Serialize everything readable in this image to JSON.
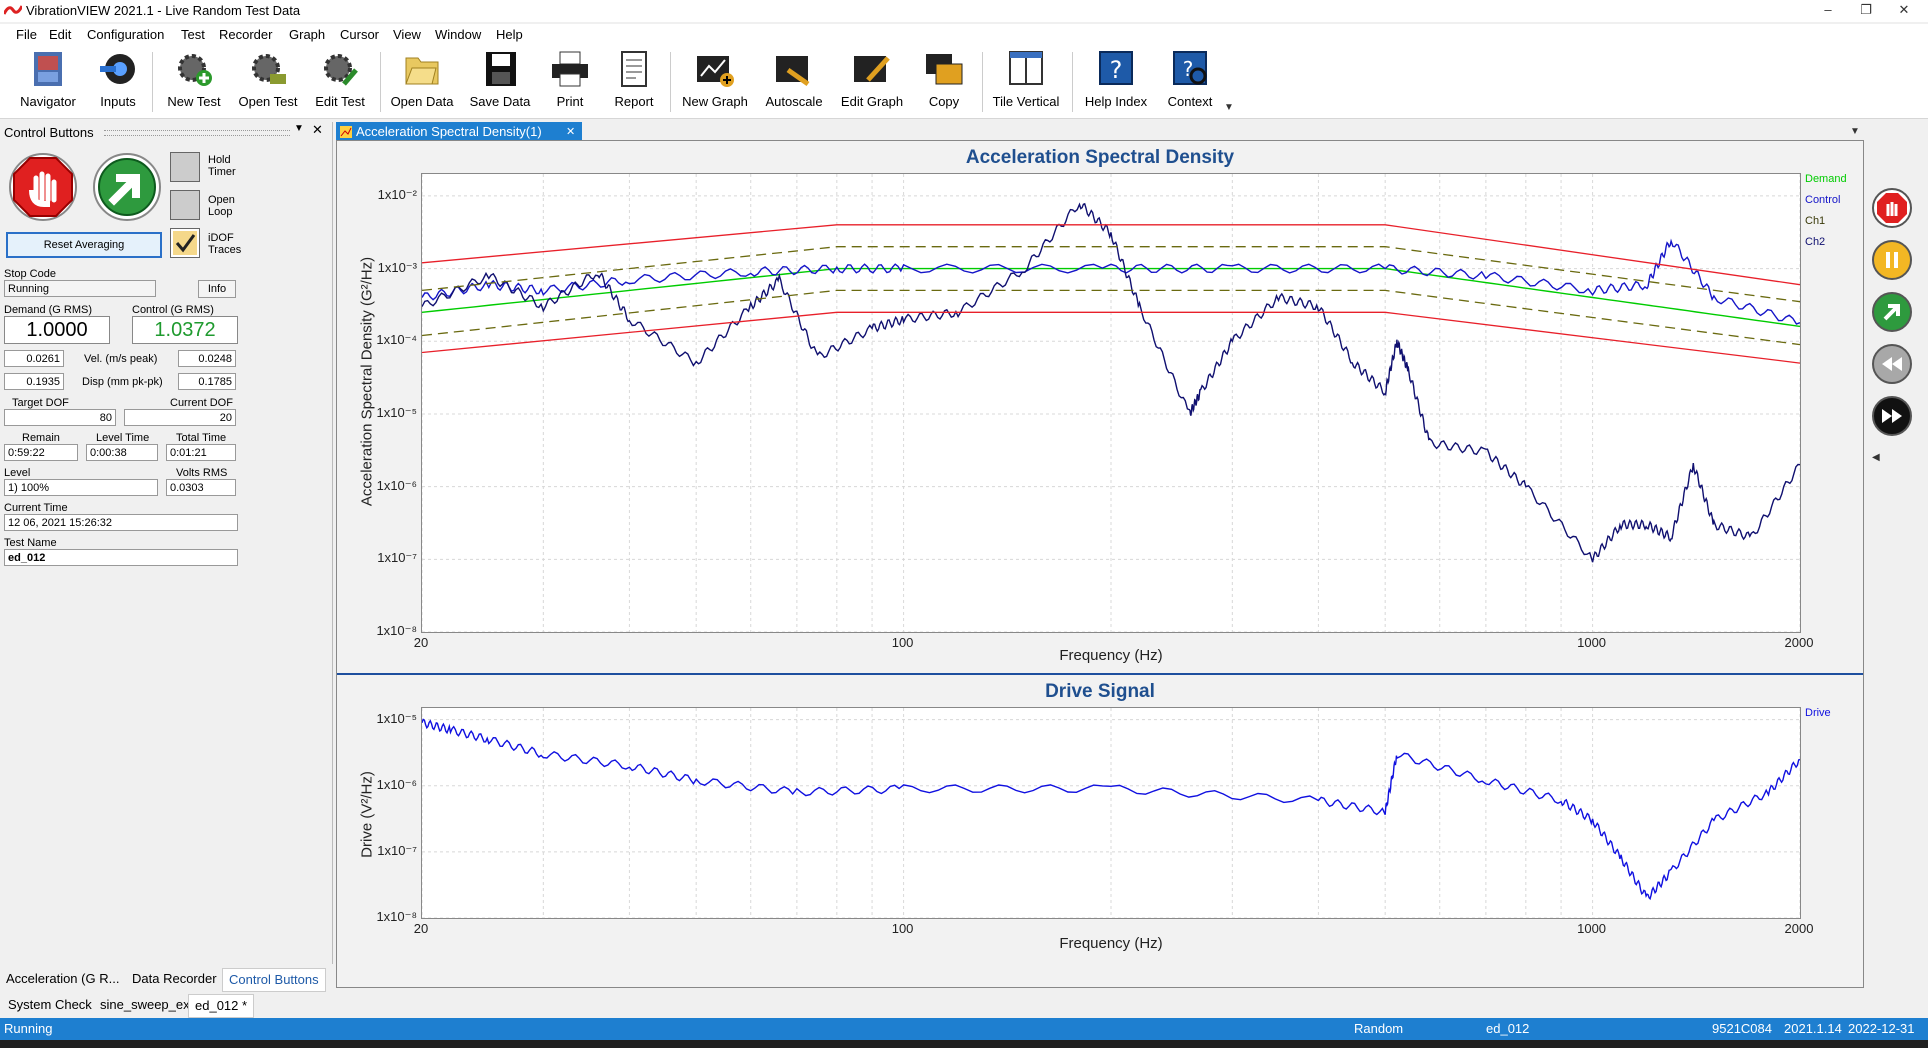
{
  "window": {
    "title": "VibrationVIEW 2021.1 - Live Random Test Data",
    "min": "–",
    "restore": "❐",
    "close": "✕"
  },
  "menu": [
    "File",
    "Edit",
    "Configuration",
    "Test",
    "Recorder",
    "Graph",
    "Cursor",
    "View",
    "Window",
    "Help"
  ],
  "toolbar": {
    "navigator": "Navigator",
    "inputs": "Inputs",
    "new_test": "New Test",
    "open_test": "Open Test",
    "edit_test": "Edit Test",
    "open_data": "Open Data",
    "save_data": "Save Data",
    "print": "Print",
    "report": "Report",
    "new_graph": "New Graph",
    "autoscale": "Autoscale",
    "edit_graph": "Edit Graph",
    "copy": "Copy",
    "tile_vertical": "Tile Vertical",
    "help_index": "Help Index",
    "context": "Context"
  },
  "control_panel": {
    "header": "Control Buttons",
    "hold_timer": [
      "Hold",
      "Timer"
    ],
    "open_loop": [
      "Open",
      "Loop"
    ],
    "idof_traces": [
      "iDOF",
      "Traces"
    ],
    "reset_averaging": "Reset Averaging",
    "stop_code_label": "Stop Code",
    "stop_code_value": "Running",
    "info_button": "Info",
    "demand_label": "Demand (G RMS)",
    "demand_value": "1.0000",
    "control_label": "Control (G RMS)",
    "control_value": "1.0372",
    "vel_label": "Vel. (m/s peak)",
    "vel_left": "0.0261",
    "vel_right": "0.0248",
    "disp_label": "Disp (mm pk-pk)",
    "disp_left": "0.1935",
    "disp_right": "0.1785",
    "target_dof_label": "Target DOF",
    "target_dof_value": "80",
    "current_dof_label": "Current DOF",
    "current_dof_value": "20",
    "remain_label": "Remain",
    "remain_value": "0:59:22",
    "level_time_label": "Level Time",
    "level_time_value": "0:00:38",
    "total_time_label": "Total Time",
    "total_time_value": "0:01:21",
    "level_label": "Level",
    "level_value": "1) 100%",
    "volts_rms_label": "Volts RMS",
    "volts_rms_value": "0.0303",
    "current_time_label": "Current Time",
    "current_time_value": "12 06, 2021 15:26:32",
    "test_name_label": "Test Name",
    "test_name_value": "ed_012"
  },
  "graph_tab": "Acceleration Spectral Density(1)",
  "asd_chart": {
    "title": "Acceleration Spectral Density",
    "xlabel": "Frequency (Hz)",
    "ylabel": "Acceleration Spectral Density (G²/Hz)",
    "x_ticks": [
      "20",
      "100",
      "1000",
      "2000"
    ],
    "y_ticks": [
      "1x10⁻²",
      "1x10⁻³",
      "1x10⁻⁴",
      "1x10⁻⁵",
      "1x10⁻⁶",
      "1x10⁻⁷",
      "1x10⁻⁸"
    ],
    "legend": [
      "Demand",
      "Control",
      "Ch1",
      "Ch2"
    ]
  },
  "drive_chart": {
    "title": "Drive Signal",
    "xlabel": "Frequency (Hz)",
    "ylabel": "Drive (V²/Hz)",
    "x_ticks": [
      "20",
      "100",
      "1000",
      "2000"
    ],
    "y_ticks": [
      "1x10⁻⁵",
      "1x10⁻⁶",
      "1x10⁻⁷",
      "1x10⁻⁸"
    ],
    "legend": [
      "Drive"
    ]
  },
  "chart_data": [
    {
      "type": "line",
      "title": "Acceleration Spectral Density",
      "xlabel": "Frequency (Hz)",
      "ylabel": "Acceleration Spectral Density (G²/Hz)",
      "x_scale": "log",
      "y_scale": "log",
      "xlim": [
        20,
        2000
      ],
      "ylim": [
        1e-08,
        0.02
      ],
      "grid": true,
      "legend_position": "right",
      "series": [
        {
          "name": "Demand",
          "color": "#00cc00",
          "x": [
            20,
            80,
            500,
            1000,
            2000
          ],
          "y": [
            0.00025,
            0.001,
            0.001,
            0.0004,
            0.00016
          ]
        },
        {
          "name": "Control",
          "color": "#1515c8",
          "x": [
            20,
            25,
            30,
            40,
            60,
            80,
            100,
            200,
            300,
            500,
            700,
            1000,
            1200,
            1300,
            1500,
            2000
          ],
          "y": [
            0.0004,
            0.0006,
            0.0005,
            0.0007,
            0.0009,
            0.001,
            0.001,
            0.001,
            0.001,
            0.001,
            0.0008,
            0.0005,
            0.0006,
            0.0025,
            0.0004,
            0.00018
          ]
        },
        {
          "name": "Ch1",
          "color": "#3a3a0a",
          "x": [],
          "y": []
        },
        {
          "name": "Ch2",
          "color": "#101070",
          "x": [
            20,
            25,
            30,
            36,
            40,
            50,
            60,
            66,
            75,
            90,
            100,
            120,
            150,
            180,
            200,
            220,
            260,
            270,
            300,
            350,
            400,
            450,
            500,
            520,
            540,
            580,
            700,
            800,
            1000,
            1100,
            1200,
            1300,
            1400,
            1500,
            1700,
            2000
          ],
          "y": [
            0.0003,
            0.0008,
            0.0003,
            0.0009,
            0.0002,
            5e-05,
            0.0003,
            0.0007,
            6e-05,
            0.00015,
            0.0002,
            0.00025,
            0.001,
            0.008,
            0.003,
            0.0003,
            1e-05,
            2e-05,
            0.0001,
            0.0004,
            0.0003,
            5e-05,
            2e-05,
            0.0001,
            4e-05,
            4e-06,
            3e-06,
            1e-06,
            1e-07,
            3e-07,
            3e-07,
            2e-07,
            2e-06,
            3e-07,
            2e-07,
            2e-06
          ]
        },
        {
          "name": "Alarm limits (red)",
          "color": "#e8202a",
          "x": [
            20,
            80,
            500,
            2000
          ],
          "y_upper": [
            0.0012,
            0.004,
            0.004,
            0.0006
          ],
          "y_lower": [
            7e-05,
            0.00025,
            0.00025,
            5e-05
          ]
        },
        {
          "name": "Abort limits (dashed)",
          "color": "#6a6a10",
          "x": [
            20,
            80,
            500,
            2000
          ],
          "y_upper": [
            0.0005,
            0.002,
            0.002,
            0.00035
          ],
          "y_lower": [
            0.00012,
            0.0005,
            0.0005,
            9e-05
          ]
        }
      ]
    },
    {
      "type": "line",
      "title": "Drive Signal",
      "xlabel": "Frequency (Hz)",
      "ylabel": "Drive (V²/Hz)",
      "x_scale": "log",
      "y_scale": "log",
      "xlim": [
        20,
        2000
      ],
      "ylim": [
        1e-08,
        1.5e-05
      ],
      "grid": true,
      "legend_position": "right",
      "series": [
        {
          "name": "Drive",
          "color": "#1010e0",
          "x": [
            20,
            22,
            25,
            30,
            40,
            50,
            70,
            100,
            200,
            400,
            500,
            520,
            700,
            900,
            1000,
            1100,
            1200,
            1300,
            1500,
            1800,
            2000
          ],
          "y": [
            9e-06,
            7e-06,
            5e-06,
            3e-06,
            2e-06,
            1.2e-06,
            8e-07,
            9e-07,
            9e-07,
            6e-07,
            4e-07,
            3e-06,
            1.2e-06,
            6e-07,
            3e-07,
            8e-08,
            2e-08,
            5e-08,
            3e-07,
            8e-07,
            2.5e-06
          ]
        }
      ]
    }
  ],
  "bottom_tabs": [
    "Acceleration (G R...",
    "Data Recorder",
    "Control Buttons"
  ],
  "test_tabs": [
    "System Check",
    "sine_sweep_ex",
    "ed_012 *"
  ],
  "status": {
    "state": "Running",
    "mode": "Random",
    "test": "ed_012",
    "serial": "9521C084",
    "version": "2021.1.14",
    "expire": "2022-12-31"
  },
  "colors": {
    "accent": "#1e7fd0",
    "title_blue": "#1f4f8f",
    "demand": "#00cc00",
    "control": "#1515c8",
    "limits": "#e8202a"
  }
}
